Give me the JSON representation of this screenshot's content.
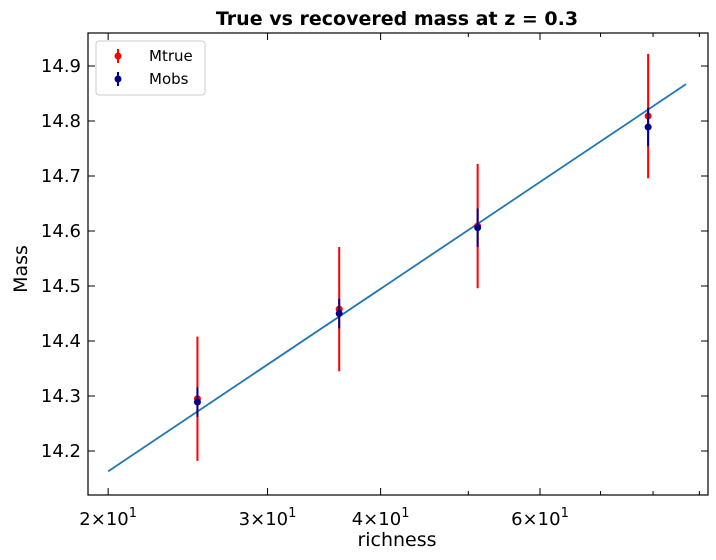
{
  "chart_data": {
    "type": "scatter",
    "title": "True vs recovered mass at z = 0.3",
    "xlabel": "richness",
    "ylabel": "Mass",
    "x_scale": "log",
    "xlim": [
      19.0,
      92.0
    ],
    "ylim": [
      14.12,
      14.96
    ],
    "x_major_ticks": [
      20,
      30,
      40,
      60
    ],
    "x_tick_labels": [
      {
        "base": "2×10",
        "exp": "1"
      },
      {
        "base": "3×10",
        "exp": "1"
      },
      {
        "base": "4×10",
        "exp": "1"
      },
      {
        "base": "6×10",
        "exp": "1"
      }
    ],
    "x_minor_ticks": [
      50,
      70,
      80,
      90
    ],
    "y_ticks": [
      14.2,
      14.3,
      14.4,
      14.5,
      14.6,
      14.7,
      14.8,
      14.9
    ],
    "y_tick_labels": [
      "14.2",
      "14.3",
      "14.4",
      "14.5",
      "14.6",
      "14.7",
      "14.8",
      "14.9"
    ],
    "legend_position": "top-left",
    "series": [
      {
        "name": "Mtrue",
        "color": "#ff0000",
        "points": [
          {
            "x": 25.1,
            "y": 14.295,
            "err": 0.113
          },
          {
            "x": 36.0,
            "y": 14.458,
            "err": 0.113
          },
          {
            "x": 51.2,
            "y": 14.609,
            "err": 0.113
          },
          {
            "x": 79.0,
            "y": 14.809,
            "err": 0.113
          }
        ]
      },
      {
        "name": "Mobs",
        "color": "#00008b",
        "points": [
          {
            "x": 25.1,
            "y": 14.289,
            "err": 0.027
          },
          {
            "x": 36.0,
            "y": 14.45,
            "err": 0.027
          },
          {
            "x": 51.2,
            "y": 14.606,
            "err": 0.035
          },
          {
            "x": 79.0,
            "y": 14.789,
            "err": 0.035
          }
        ]
      }
    ],
    "fit_line": {
      "color": "#1f77b4",
      "x": [
        20.0,
        87.0
      ],
      "y": [
        14.163,
        14.867
      ]
    }
  }
}
